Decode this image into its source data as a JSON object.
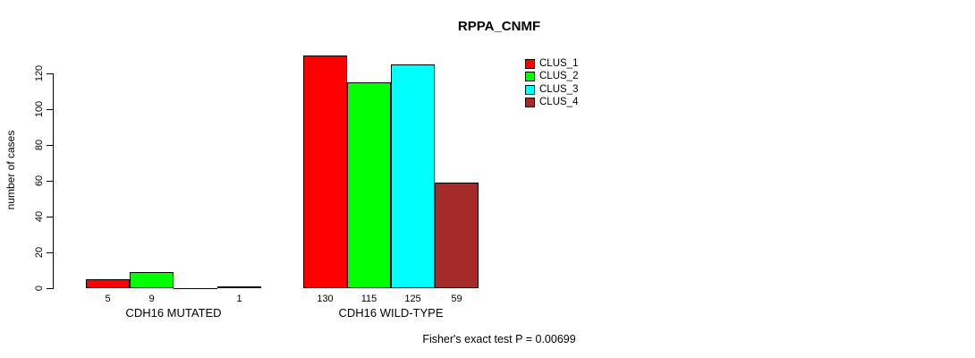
{
  "footer": "Fisher's exact test P = 0.00699",
  "chart_data": {
    "type": "bar",
    "title": "RPPA_CNMF",
    "ylabel": "number of cases",
    "xlabel": "",
    "ylim": [
      0,
      130
    ],
    "yticks": [
      0,
      20,
      40,
      60,
      80,
      100,
      120
    ],
    "grid": false,
    "legend_position": "right",
    "categories": [
      "CDH16 MUTATED",
      "CDH16 WILD-TYPE"
    ],
    "series": [
      {
        "name": "CLUS_1",
        "color": "#ff0000",
        "values": [
          5,
          130
        ]
      },
      {
        "name": "CLUS_2",
        "color": "#00ff00",
        "values": [
          9,
          115
        ]
      },
      {
        "name": "CLUS_3",
        "color": "#00ffff",
        "values": [
          0,
          125
        ]
      },
      {
        "name": "CLUS_4",
        "color": "#a52a2a",
        "values": [
          1,
          59
        ]
      }
    ],
    "bar_value_labels_shown": true,
    "annotation": "Fisher's exact test P = 0.00699"
  }
}
